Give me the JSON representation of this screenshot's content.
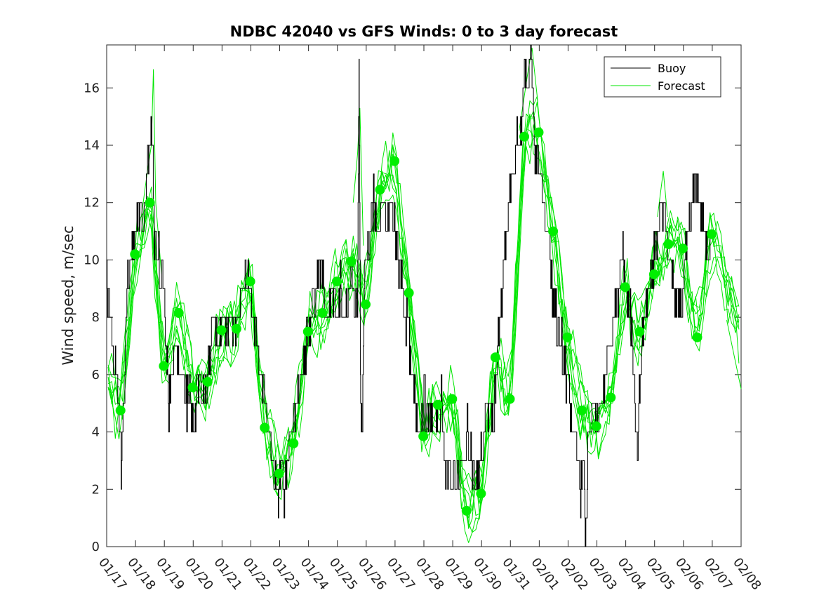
{
  "chart_data": {
    "type": "line",
    "title": "NDBC 42040 vs GFS Winds: 0 to 3 day forecast",
    "ylabel": "Wind speed, m/sec",
    "xlabel": "",
    "ylim": [
      0,
      17.5
    ],
    "yticks": [
      0,
      2,
      4,
      6,
      8,
      10,
      12,
      14,
      16
    ],
    "xlim_days": [
      0,
      22
    ],
    "x_tick_labels": [
      "01/17",
      "01/18",
      "01/19",
      "01/20",
      "01/21",
      "01/22",
      "01/23",
      "01/24",
      "01/25",
      "01/26",
      "01/27",
      "01/28",
      "01/29",
      "01/30",
      "01/31",
      "02/01",
      "02/02",
      "02/03",
      "02/04",
      "02/05",
      "02/06",
      "02/07",
      "02/08"
    ],
    "legend": {
      "position": "top-right",
      "entries": [
        "Buoy",
        "Forecast"
      ]
    },
    "colors": {
      "buoy": "#000000",
      "forecast": "#00e600",
      "marker": "#00ee00"
    },
    "buoy_anchor_points": [
      [
        0.0,
        9
      ],
      [
        0.1,
        8
      ],
      [
        0.2,
        7
      ],
      [
        0.3,
        6
      ],
      [
        0.4,
        5
      ],
      [
        0.5,
        3
      ],
      [
        0.6,
        5
      ],
      [
        0.7,
        9
      ],
      [
        0.85,
        10
      ],
      [
        1.0,
        11
      ],
      [
        1.1,
        12
      ],
      [
        1.25,
        11
      ],
      [
        1.4,
        13
      ],
      [
        1.5,
        14
      ],
      [
        1.55,
        15
      ],
      [
        1.65,
        11
      ],
      [
        1.8,
        10
      ],
      [
        1.95,
        9
      ],
      [
        2.05,
        7
      ],
      [
        2.15,
        5
      ],
      [
        2.3,
        6
      ],
      [
        2.45,
        7
      ],
      [
        2.6,
        6
      ],
      [
        2.75,
        5
      ],
      [
        2.9,
        5
      ],
      [
        3.0,
        4
      ],
      [
        3.1,
        5
      ],
      [
        3.25,
        6
      ],
      [
        3.4,
        5
      ],
      [
        3.5,
        6
      ],
      [
        3.6,
        7
      ],
      [
        3.7,
        8
      ],
      [
        3.85,
        7
      ],
      [
        4.0,
        8
      ],
      [
        4.15,
        7
      ],
      [
        4.3,
        8
      ],
      [
        4.5,
        8
      ],
      [
        4.7,
        9
      ],
      [
        4.9,
        10
      ],
      [
        5.05,
        8
      ],
      [
        5.2,
        7
      ],
      [
        5.35,
        6
      ],
      [
        5.5,
        5
      ],
      [
        5.65,
        4
      ],
      [
        5.8,
        3
      ],
      [
        5.95,
        2
      ],
      [
        6.05,
        3
      ],
      [
        6.15,
        2
      ],
      [
        6.3,
        3
      ],
      [
        6.45,
        4
      ],
      [
        6.6,
        5
      ],
      [
        6.75,
        6
      ],
      [
        6.9,
        7
      ],
      [
        7.05,
        8
      ],
      [
        7.2,
        9
      ],
      [
        7.35,
        10
      ],
      [
        7.5,
        9
      ],
      [
        7.65,
        8
      ],
      [
        7.8,
        9
      ],
      [
        7.95,
        8
      ],
      [
        8.1,
        9
      ],
      [
        8.25,
        8
      ],
      [
        8.4,
        9
      ],
      [
        8.5,
        10
      ],
      [
        8.6,
        8
      ],
      [
        8.7,
        9
      ],
      [
        8.75,
        17
      ],
      [
        8.8,
        6
      ],
      [
        8.85,
        4
      ],
      [
        8.95,
        10
      ],
      [
        9.1,
        11
      ],
      [
        9.25,
        12
      ],
      [
        9.4,
        11
      ],
      [
        9.55,
        12
      ],
      [
        9.7,
        11
      ],
      [
        9.85,
        12
      ],
      [
        10.0,
        11
      ],
      [
        10.1,
        10
      ],
      [
        10.25,
        9
      ],
      [
        10.4,
        8
      ],
      [
        10.55,
        6
      ],
      [
        10.7,
        5
      ],
      [
        10.85,
        4
      ],
      [
        11.0,
        5
      ],
      [
        11.15,
        4
      ],
      [
        11.3,
        5
      ],
      [
        11.45,
        4
      ],
      [
        11.6,
        5
      ],
      [
        11.75,
        3
      ],
      [
        11.9,
        2
      ],
      [
        12.05,
        3
      ],
      [
        12.2,
        2
      ],
      [
        12.35,
        3
      ],
      [
        12.5,
        4
      ],
      [
        12.65,
        3
      ],
      [
        12.8,
        2
      ],
      [
        12.95,
        3
      ],
      [
        13.1,
        4
      ],
      [
        13.25,
        5
      ],
      [
        13.4,
        4
      ],
      [
        13.5,
        6
      ],
      [
        13.65,
        8
      ],
      [
        13.8,
        10
      ],
      [
        13.95,
        12
      ],
      [
        14.1,
        13
      ],
      [
        14.25,
        14
      ],
      [
        14.4,
        15
      ],
      [
        14.5,
        17
      ],
      [
        14.6,
        16
      ],
      [
        14.7,
        17
      ],
      [
        14.85,
        14
      ],
      [
        15.0,
        13
      ],
      [
        15.15,
        12
      ],
      [
        15.3,
        11
      ],
      [
        15.45,
        9
      ],
      [
        15.6,
        8
      ],
      [
        15.75,
        7
      ],
      [
        15.9,
        6
      ],
      [
        16.05,
        5
      ],
      [
        16.2,
        4
      ],
      [
        16.35,
        3
      ],
      [
        16.45,
        2
      ],
      [
        16.55,
        3
      ],
      [
        16.6,
        0
      ],
      [
        16.7,
        4
      ],
      [
        16.85,
        5
      ],
      [
        17.0,
        4
      ],
      [
        17.15,
        5
      ],
      [
        17.3,
        6
      ],
      [
        17.45,
        7
      ],
      [
        17.6,
        8
      ],
      [
        17.75,
        9
      ],
      [
        17.9,
        10
      ],
      [
        18.0,
        9
      ],
      [
        18.15,
        8
      ],
      [
        18.3,
        6
      ],
      [
        18.4,
        3
      ],
      [
        18.5,
        6
      ],
      [
        18.65,
        8
      ],
      [
        18.8,
        9
      ],
      [
        18.95,
        10
      ],
      [
        19.1,
        11
      ],
      [
        19.25,
        12
      ],
      [
        19.4,
        11
      ],
      [
        19.55,
        10
      ],
      [
        19.7,
        9
      ],
      [
        19.85,
        8
      ],
      [
        20.0,
        9
      ],
      [
        20.15,
        11
      ],
      [
        20.3,
        12
      ],
      [
        20.45,
        13
      ],
      [
        20.55,
        12
      ],
      [
        20.7,
        11
      ],
      [
        20.85,
        10
      ],
      [
        21.0,
        11
      ]
    ],
    "forecast_markers": [
      [
        0.48,
        4.75
      ],
      [
        0.98,
        10.2
      ],
      [
        1.5,
        12.0
      ],
      [
        1.98,
        6.3
      ],
      [
        2.5,
        8.15
      ],
      [
        2.98,
        5.55
      ],
      [
        3.5,
        5.75
      ],
      [
        3.98,
        7.55
      ],
      [
        4.5,
        7.6
      ],
      [
        4.98,
        9.25
      ],
      [
        5.48,
        4.15
      ],
      [
        5.98,
        2.55
      ],
      [
        6.48,
        3.6
      ],
      [
        6.98,
        7.5
      ],
      [
        7.48,
        8.15
      ],
      [
        7.98,
        9.25
      ],
      [
        8.48,
        9.95
      ],
      [
        8.98,
        8.45
      ],
      [
        9.48,
        12.45
      ],
      [
        9.98,
        13.45
      ],
      [
        10.48,
        8.85
      ],
      [
        10.98,
        3.85
      ],
      [
        11.48,
        4.95
      ],
      [
        11.98,
        5.15
      ],
      [
        12.48,
        1.25
      ],
      [
        12.98,
        1.85
      ],
      [
        13.48,
        6.6
      ],
      [
        13.98,
        5.15
      ],
      [
        14.48,
        14.3
      ],
      [
        14.98,
        14.45
      ],
      [
        15.48,
        11.0
      ],
      [
        15.98,
        7.3
      ],
      [
        16.48,
        4.75
      ],
      [
        16.98,
        4.2
      ],
      [
        17.48,
        5.2
      ],
      [
        17.98,
        9.05
      ],
      [
        18.48,
        7.5
      ],
      [
        18.98,
        9.5
      ],
      [
        19.48,
        10.55
      ],
      [
        19.98,
        10.4
      ],
      [
        20.48,
        7.3
      ],
      [
        20.98,
        10.9
      ]
    ],
    "forecast_peak_overlay": [
      [
        1.2,
        11.5
      ],
      [
        1.4,
        13
      ],
      [
        1.55,
        14
      ],
      [
        1.62,
        16.65
      ],
      [
        1.7,
        12
      ],
      [
        1.9,
        9.5
      ],
      [
        8.55,
        12
      ],
      [
        8.7,
        13.7
      ],
      [
        8.78,
        15.3
      ],
      [
        8.9,
        10.5
      ],
      [
        14.3,
        14.5
      ],
      [
        14.6,
        16.5
      ],
      [
        14.75,
        17.4
      ],
      [
        14.95,
        15.5
      ],
      [
        19.1,
        11.5
      ],
      [
        19.3,
        13.1
      ],
      [
        19.45,
        11.5
      ],
      [
        21.5,
        7.9
      ],
      [
        22.0,
        5.5
      ]
    ]
  }
}
